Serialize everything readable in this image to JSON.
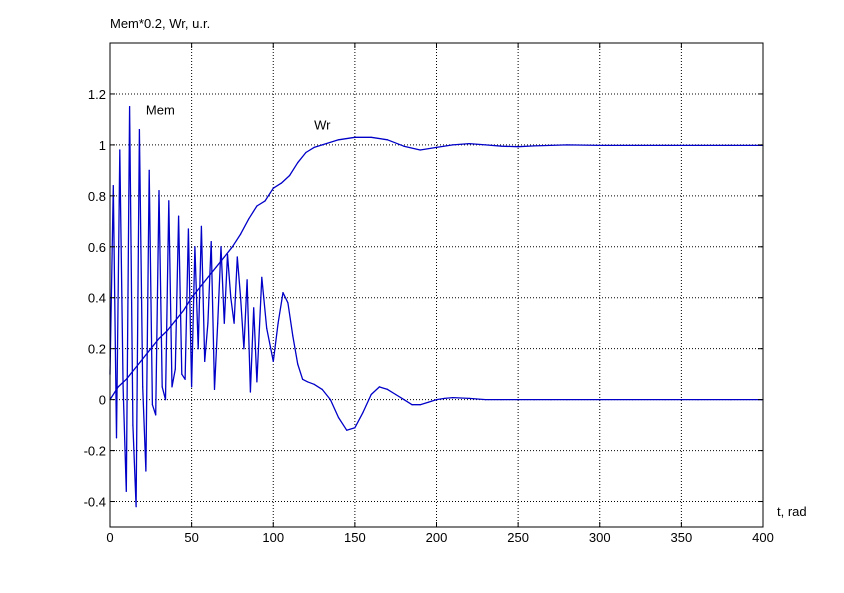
{
  "chart_data": {
    "type": "line",
    "title": "",
    "ylabel": "Mem*0.2, Wr, u.r.",
    "xlabel": "t, rad",
    "xlim": [
      0,
      400
    ],
    "ylim": [
      -0.5,
      1.4
    ],
    "xticks": [
      0,
      50,
      100,
      150,
      200,
      250,
      300,
      350,
      400
    ],
    "yticks": [
      -0.4,
      -0.2,
      0,
      0.2,
      0.4,
      0.6,
      0.8,
      1,
      1.2
    ],
    "ytick_labels": [
      "-0.4",
      "-0.2",
      "0",
      "0.2",
      "0.4",
      "0.6",
      "0.8",
      "1",
      "1.2"
    ],
    "grid": true,
    "line_color": "#0000c8",
    "series": [
      {
        "name": "Wr",
        "label": "Wr",
        "label_at": [
          125,
          1.06
        ],
        "x": [
          0,
          5,
          10,
          15,
          20,
          25,
          30,
          35,
          40,
          45,
          50,
          55,
          60,
          65,
          70,
          75,
          80,
          85,
          90,
          95,
          100,
          105,
          110,
          115,
          120,
          125,
          130,
          140,
          150,
          160,
          170,
          180,
          190,
          200,
          210,
          220,
          230,
          240,
          250,
          260,
          270,
          280,
          300,
          320,
          340,
          360,
          380,
          400
        ],
        "y": [
          0,
          0.05,
          0.08,
          0.12,
          0.16,
          0.2,
          0.24,
          0.27,
          0.31,
          0.35,
          0.4,
          0.44,
          0.48,
          0.52,
          0.56,
          0.6,
          0.65,
          0.71,
          0.76,
          0.78,
          0.83,
          0.85,
          0.88,
          0.93,
          0.97,
          0.99,
          1.0,
          1.02,
          1.03,
          1.03,
          1.02,
          0.995,
          0.98,
          0.99,
          1.0,
          1.005,
          1.0,
          0.995,
          0.993,
          0.996,
          0.998,
          1.0,
          0.998,
          0.998,
          0.998,
          0.998,
          0.998,
          0.998
        ]
      },
      {
        "name": "Mem",
        "label": "Mem",
        "label_at": [
          22,
          1.12
        ],
        "x": [
          0,
          2,
          4,
          6,
          8,
          10,
          12,
          14,
          16,
          18,
          20,
          22,
          24,
          26,
          28,
          30,
          32,
          34,
          36,
          38,
          40,
          42,
          44,
          46,
          48,
          50,
          52,
          54,
          56,
          58,
          60,
          62,
          64,
          66,
          68,
          70,
          72,
          74,
          76,
          78,
          80,
          82,
          84,
          86,
          88,
          90,
          93,
          96,
          100,
          103,
          106,
          109,
          112,
          115,
          118,
          121,
          125,
          130,
          135,
          140,
          145,
          150,
          155,
          160,
          165,
          170,
          175,
          180,
          185,
          190,
          195,
          200,
          205,
          210,
          220,
          230,
          240,
          250,
          260,
          270,
          280,
          300,
          320,
          340,
          360,
          380,
          400
        ],
        "y": [
          0.1,
          0.84,
          -0.15,
          0.98,
          0.05,
          -0.36,
          1.15,
          -0.1,
          -0.42,
          1.06,
          0.05,
          -0.28,
          0.9,
          -0.02,
          -0.06,
          0.82,
          0.05,
          0.0,
          0.78,
          0.05,
          0.12,
          0.72,
          0.1,
          0.08,
          0.67,
          0.05,
          0.6,
          0.2,
          0.68,
          0.15,
          0.3,
          0.62,
          0.04,
          0.3,
          0.6,
          0.3,
          0.57,
          0.4,
          0.3,
          0.56,
          0.4,
          0.2,
          0.47,
          0.03,
          0.36,
          0.07,
          0.48,
          0.28,
          0.15,
          0.3,
          0.42,
          0.38,
          0.25,
          0.14,
          0.08,
          0.07,
          0.06,
          0.04,
          0.0,
          -0.07,
          -0.12,
          -0.11,
          -0.05,
          0.02,
          0.05,
          0.04,
          0.02,
          0.0,
          -0.02,
          -0.02,
          -0.01,
          0.0,
          0.005,
          0.008,
          0.005,
          0.0,
          0.0,
          0.0,
          0.0,
          0.0,
          0.0,
          0.0,
          0.0,
          0.0,
          0.0,
          0.0,
          0.0
        ]
      }
    ]
  }
}
